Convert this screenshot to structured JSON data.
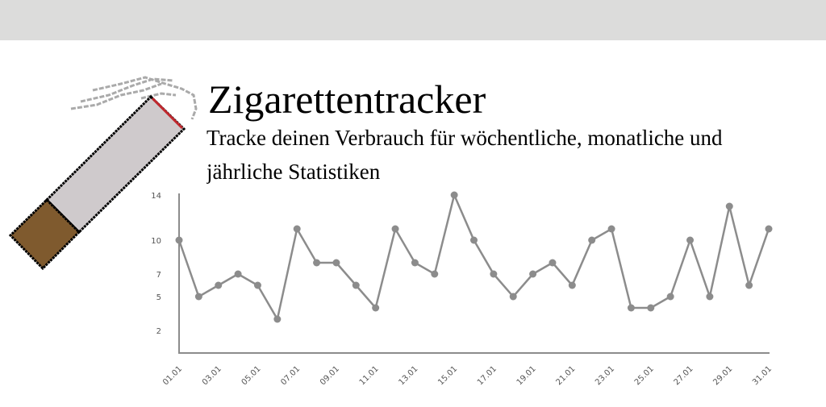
{
  "title": "Zigarettentracker",
  "subtitle": "Tracke deinen Verbrauch für wöchentliche, monatliche und jährliche Statistiken",
  "chart_data": {
    "type": "line",
    "categories": [
      "01.01",
      null,
      "03.01",
      null,
      "05.01",
      null,
      "07.01",
      null,
      "09.01",
      null,
      "11.01",
      null,
      "13.01",
      null,
      "15.01",
      null,
      "17.01",
      null,
      "19.01",
      null,
      "21.01",
      null,
      "23.01",
      null,
      "25.01",
      null,
      "27.01",
      null,
      "29.01",
      null,
      "31.01"
    ],
    "values": [
      10,
      5,
      6,
      7,
      6,
      3,
      11,
      8,
      8,
      6,
      4,
      11,
      8,
      7,
      14,
      10,
      7,
      5,
      7,
      8,
      6,
      10,
      11,
      4,
      4,
      5,
      10,
      5,
      13,
      6,
      11
    ],
    "color": "#8c8c8c",
    "ylim": [
      0,
      14
    ],
    "yticks": [
      2,
      5,
      7,
      10,
      14
    ],
    "grid": false
  }
}
